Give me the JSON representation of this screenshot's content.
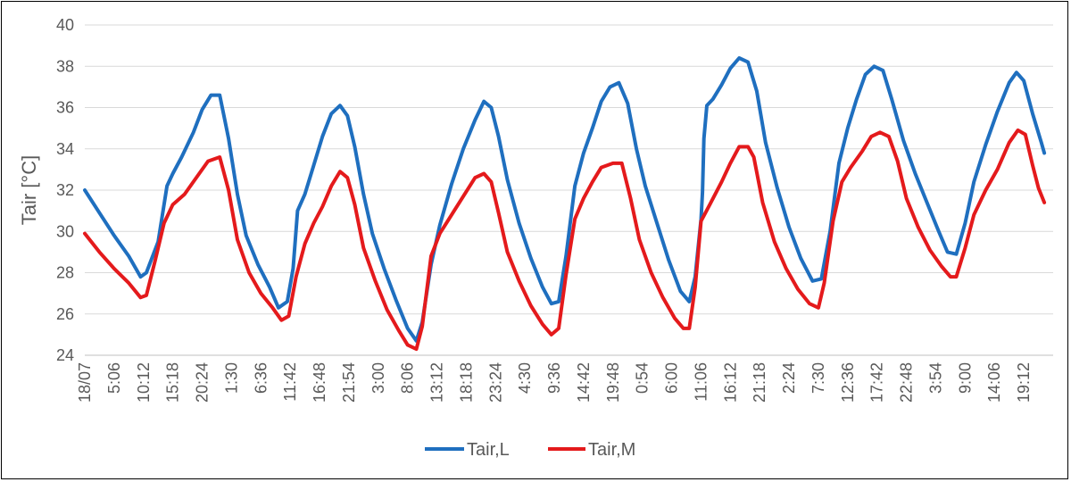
{
  "chart_data": {
    "type": "line",
    "title": "",
    "xlabel": "",
    "ylabel": "Tair [°C]",
    "ylim": [
      24,
      40
    ],
    "yticks": [
      24,
      26,
      28,
      30,
      32,
      34,
      36,
      38,
      40
    ],
    "grid": true,
    "legend": "bottom-center",
    "x_tick_labels": [
      "18/07",
      "5:06",
      "10:12",
      "15:18",
      "20:24",
      "1:30",
      "6:36",
      "11:42",
      "16:48",
      "21:54",
      "3:00",
      "8:06",
      "13:12",
      "18:18",
      "23:24",
      "4:30",
      "9:36",
      "14:42",
      "19:48",
      "0:54",
      "6:00",
      "11:06",
      "16:12",
      "21:18",
      "2:24",
      "7:30",
      "12:36",
      "17:42",
      "22:48",
      "3:54",
      "9:00",
      "14:06",
      "19:12"
    ],
    "x_index_note_range": [
      0,
      33
    ],
    "series": [
      {
        "name": "Tair,L",
        "color": "#1f6fbf",
        "points": [
          [
            0,
            32.0
          ],
          [
            0.5,
            30.9
          ],
          [
            1.0,
            29.8
          ],
          [
            1.5,
            28.8
          ],
          [
            1.9,
            27.8
          ],
          [
            2.1,
            28.0
          ],
          [
            2.5,
            29.5
          ],
          [
            2.8,
            32.2
          ],
          [
            3.0,
            32.8
          ],
          [
            3.3,
            33.6
          ],
          [
            3.7,
            34.8
          ],
          [
            4.0,
            35.9
          ],
          [
            4.3,
            36.6
          ],
          [
            4.6,
            36.6
          ],
          [
            4.9,
            34.5
          ],
          [
            5.2,
            31.8
          ],
          [
            5.5,
            29.8
          ],
          [
            5.9,
            28.4
          ],
          [
            6.3,
            27.3
          ],
          [
            6.6,
            26.3
          ],
          [
            6.9,
            26.6
          ],
          [
            7.1,
            28.2
          ],
          [
            7.25,
            31.0
          ],
          [
            7.5,
            31.8
          ],
          [
            7.8,
            33.2
          ],
          [
            8.1,
            34.6
          ],
          [
            8.4,
            35.7
          ],
          [
            8.7,
            36.1
          ],
          [
            8.95,
            35.6
          ],
          [
            9.2,
            34.1
          ],
          [
            9.5,
            31.8
          ],
          [
            9.8,
            29.9
          ],
          [
            10.2,
            28.2
          ],
          [
            10.6,
            26.7
          ],
          [
            11.0,
            25.3
          ],
          [
            11.3,
            24.7
          ],
          [
            11.5,
            25.6
          ],
          [
            11.8,
            28.4
          ],
          [
            12.1,
            30.3
          ],
          [
            12.5,
            32.3
          ],
          [
            12.9,
            34.0
          ],
          [
            13.3,
            35.4
          ],
          [
            13.6,
            36.3
          ],
          [
            13.85,
            36.0
          ],
          [
            14.1,
            34.6
          ],
          [
            14.4,
            32.5
          ],
          [
            14.8,
            30.4
          ],
          [
            15.2,
            28.7
          ],
          [
            15.6,
            27.3
          ],
          [
            15.9,
            26.5
          ],
          [
            16.15,
            26.6
          ],
          [
            16.4,
            28.8
          ],
          [
            16.7,
            32.2
          ],
          [
            17.0,
            33.8
          ],
          [
            17.3,
            35.0
          ],
          [
            17.6,
            36.3
          ],
          [
            17.9,
            37.0
          ],
          [
            18.2,
            37.2
          ],
          [
            18.5,
            36.2
          ],
          [
            18.8,
            34.0
          ],
          [
            19.1,
            32.2
          ],
          [
            19.5,
            30.4
          ],
          [
            19.9,
            28.6
          ],
          [
            20.3,
            27.1
          ],
          [
            20.6,
            26.6
          ],
          [
            20.8,
            27.8
          ],
          [
            21.0,
            30.6
          ],
          [
            21.05,
            31.9
          ],
          [
            21.1,
            34.5
          ],
          [
            21.2,
            36.1
          ],
          [
            21.4,
            36.4
          ],
          [
            21.7,
            37.1
          ],
          [
            22.0,
            37.9
          ],
          [
            22.3,
            38.4
          ],
          [
            22.6,
            38.2
          ],
          [
            22.9,
            36.8
          ],
          [
            23.2,
            34.3
          ],
          [
            23.6,
            32.1
          ],
          [
            24.0,
            30.2
          ],
          [
            24.4,
            28.7
          ],
          [
            24.8,
            27.6
          ],
          [
            25.1,
            27.7
          ],
          [
            25.4,
            30.0
          ],
          [
            25.7,
            33.3
          ],
          [
            26.0,
            35.0
          ],
          [
            26.3,
            36.4
          ],
          [
            26.6,
            37.6
          ],
          [
            26.9,
            38.0
          ],
          [
            27.2,
            37.8
          ],
          [
            27.5,
            36.4
          ],
          [
            27.9,
            34.4
          ],
          [
            28.3,
            32.8
          ],
          [
            28.7,
            31.4
          ],
          [
            29.1,
            30.0
          ],
          [
            29.4,
            29.0
          ],
          [
            29.7,
            28.9
          ],
          [
            30.0,
            30.4
          ],
          [
            30.3,
            32.4
          ],
          [
            30.7,
            34.2
          ],
          [
            31.1,
            35.8
          ],
          [
            31.5,
            37.2
          ],
          [
            31.75,
            37.7
          ],
          [
            32.0,
            37.3
          ],
          [
            32.3,
            35.7
          ],
          [
            32.6,
            34.3
          ],
          [
            32.7,
            33.8
          ]
        ]
      },
      {
        "name": "Tair,M",
        "color": "#e41a1c",
        "points": [
          [
            0,
            29.9
          ],
          [
            0.5,
            29.0
          ],
          [
            1.0,
            28.2
          ],
          [
            1.5,
            27.5
          ],
          [
            1.9,
            26.8
          ],
          [
            2.1,
            26.9
          ],
          [
            2.4,
            28.6
          ],
          [
            2.7,
            30.4
          ],
          [
            3.0,
            31.3
          ],
          [
            3.4,
            31.8
          ],
          [
            3.8,
            32.6
          ],
          [
            4.2,
            33.4
          ],
          [
            4.6,
            33.6
          ],
          [
            4.9,
            32.0
          ],
          [
            5.2,
            29.6
          ],
          [
            5.6,
            28.0
          ],
          [
            6.0,
            27.0
          ],
          [
            6.4,
            26.3
          ],
          [
            6.7,
            25.7
          ],
          [
            6.95,
            25.9
          ],
          [
            7.2,
            27.8
          ],
          [
            7.5,
            29.4
          ],
          [
            7.8,
            30.4
          ],
          [
            8.1,
            31.2
          ],
          [
            8.4,
            32.2
          ],
          [
            8.7,
            32.9
          ],
          [
            8.95,
            32.6
          ],
          [
            9.2,
            31.3
          ],
          [
            9.5,
            29.2
          ],
          [
            9.9,
            27.6
          ],
          [
            10.3,
            26.2
          ],
          [
            10.7,
            25.2
          ],
          [
            11.0,
            24.5
          ],
          [
            11.3,
            24.3
          ],
          [
            11.5,
            25.4
          ],
          [
            11.8,
            28.8
          ],
          [
            12.1,
            29.9
          ],
          [
            12.5,
            30.8
          ],
          [
            12.9,
            31.7
          ],
          [
            13.3,
            32.6
          ],
          [
            13.6,
            32.8
          ],
          [
            13.85,
            32.4
          ],
          [
            14.1,
            30.9
          ],
          [
            14.4,
            29.0
          ],
          [
            14.8,
            27.6
          ],
          [
            15.2,
            26.4
          ],
          [
            15.6,
            25.5
          ],
          [
            15.9,
            25.0
          ],
          [
            16.15,
            25.3
          ],
          [
            16.4,
            27.9
          ],
          [
            16.7,
            30.6
          ],
          [
            17.0,
            31.6
          ],
          [
            17.3,
            32.4
          ],
          [
            17.6,
            33.1
          ],
          [
            18.0,
            33.3
          ],
          [
            18.3,
            33.3
          ],
          [
            18.6,
            31.6
          ],
          [
            18.9,
            29.6
          ],
          [
            19.3,
            28.0
          ],
          [
            19.7,
            26.8
          ],
          [
            20.1,
            25.8
          ],
          [
            20.4,
            25.3
          ],
          [
            20.6,
            25.3
          ],
          [
            20.8,
            27.3
          ],
          [
            21.0,
            30.5
          ],
          [
            21.3,
            31.3
          ],
          [
            21.7,
            32.4
          ],
          [
            22.0,
            33.3
          ],
          [
            22.3,
            34.1
          ],
          [
            22.6,
            34.1
          ],
          [
            22.8,
            33.6
          ],
          [
            23.1,
            31.4
          ],
          [
            23.5,
            29.5
          ],
          [
            23.9,
            28.2
          ],
          [
            24.3,
            27.2
          ],
          [
            24.7,
            26.5
          ],
          [
            25.0,
            26.3
          ],
          [
            25.2,
            27.5
          ],
          [
            25.5,
            30.5
          ],
          [
            25.8,
            32.4
          ],
          [
            26.1,
            33.1
          ],
          [
            26.5,
            33.9
          ],
          [
            26.8,
            34.6
          ],
          [
            27.1,
            34.8
          ],
          [
            27.4,
            34.6
          ],
          [
            27.7,
            33.4
          ],
          [
            28.0,
            31.6
          ],
          [
            28.4,
            30.2
          ],
          [
            28.8,
            29.1
          ],
          [
            29.2,
            28.3
          ],
          [
            29.5,
            27.8
          ],
          [
            29.7,
            27.8
          ],
          [
            30.0,
            29.2
          ],
          [
            30.3,
            30.8
          ],
          [
            30.7,
            32.0
          ],
          [
            31.1,
            33.0
          ],
          [
            31.5,
            34.3
          ],
          [
            31.8,
            34.9
          ],
          [
            32.05,
            34.7
          ],
          [
            32.3,
            33.2
          ],
          [
            32.5,
            32.1
          ],
          [
            32.7,
            31.4
          ]
        ]
      }
    ]
  }
}
